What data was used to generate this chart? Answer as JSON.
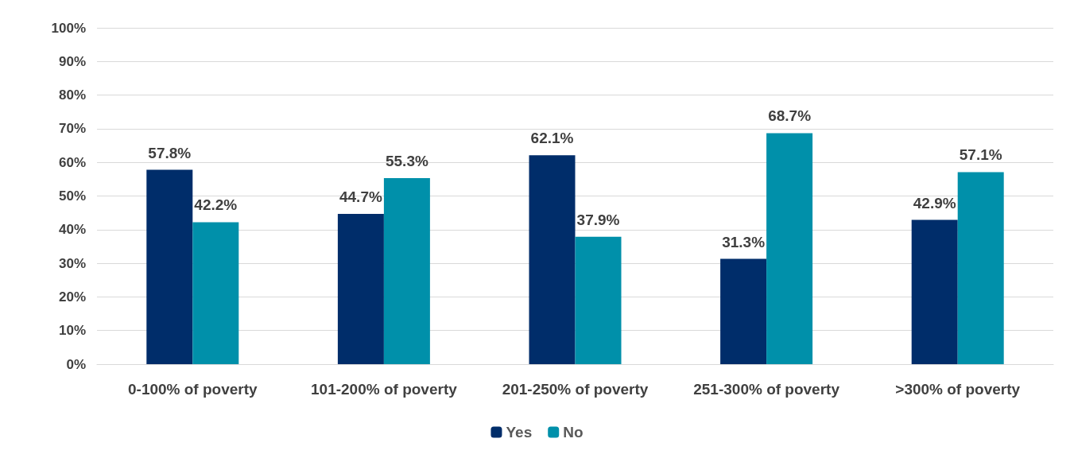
{
  "chart_data": {
    "type": "bar",
    "categories": [
      "0-100% of poverty",
      "101-200% of poverty",
      "201-250% of poverty",
      "251-300% of poverty",
      ">300% of poverty"
    ],
    "series": [
      {
        "name": "Yes",
        "color": "#002d6a",
        "values": [
          57.8,
          44.7,
          62.1,
          31.3,
          42.9
        ],
        "value_labels": [
          "57.8%",
          "44.7%",
          "62.1%",
          "31.3%",
          "42.9%"
        ]
      },
      {
        "name": "No",
        "color": "#0090aa",
        "values": [
          42.2,
          55.3,
          37.9,
          68.7,
          57.1
        ],
        "value_labels": [
          "42.2%",
          "55.3%",
          "37.9%",
          "68.7%",
          "57.1%"
        ]
      }
    ],
    "ylim": [
      0,
      100
    ],
    "yticks": [
      {
        "value": 0,
        "label": "0%"
      },
      {
        "value": 10,
        "label": "10%"
      },
      {
        "value": 20,
        "label": "20%"
      },
      {
        "value": 30,
        "label": "30%"
      },
      {
        "value": 40,
        "label": "40%"
      },
      {
        "value": 50,
        "label": "50%"
      },
      {
        "value": 60,
        "label": "60%"
      },
      {
        "value": 70,
        "label": "70%"
      },
      {
        "value": 80,
        "label": "80%"
      },
      {
        "value": 90,
        "label": "90%"
      },
      {
        "value": 100,
        "label": "100%"
      }
    ],
    "grid": "y",
    "legend": "bottom"
  }
}
